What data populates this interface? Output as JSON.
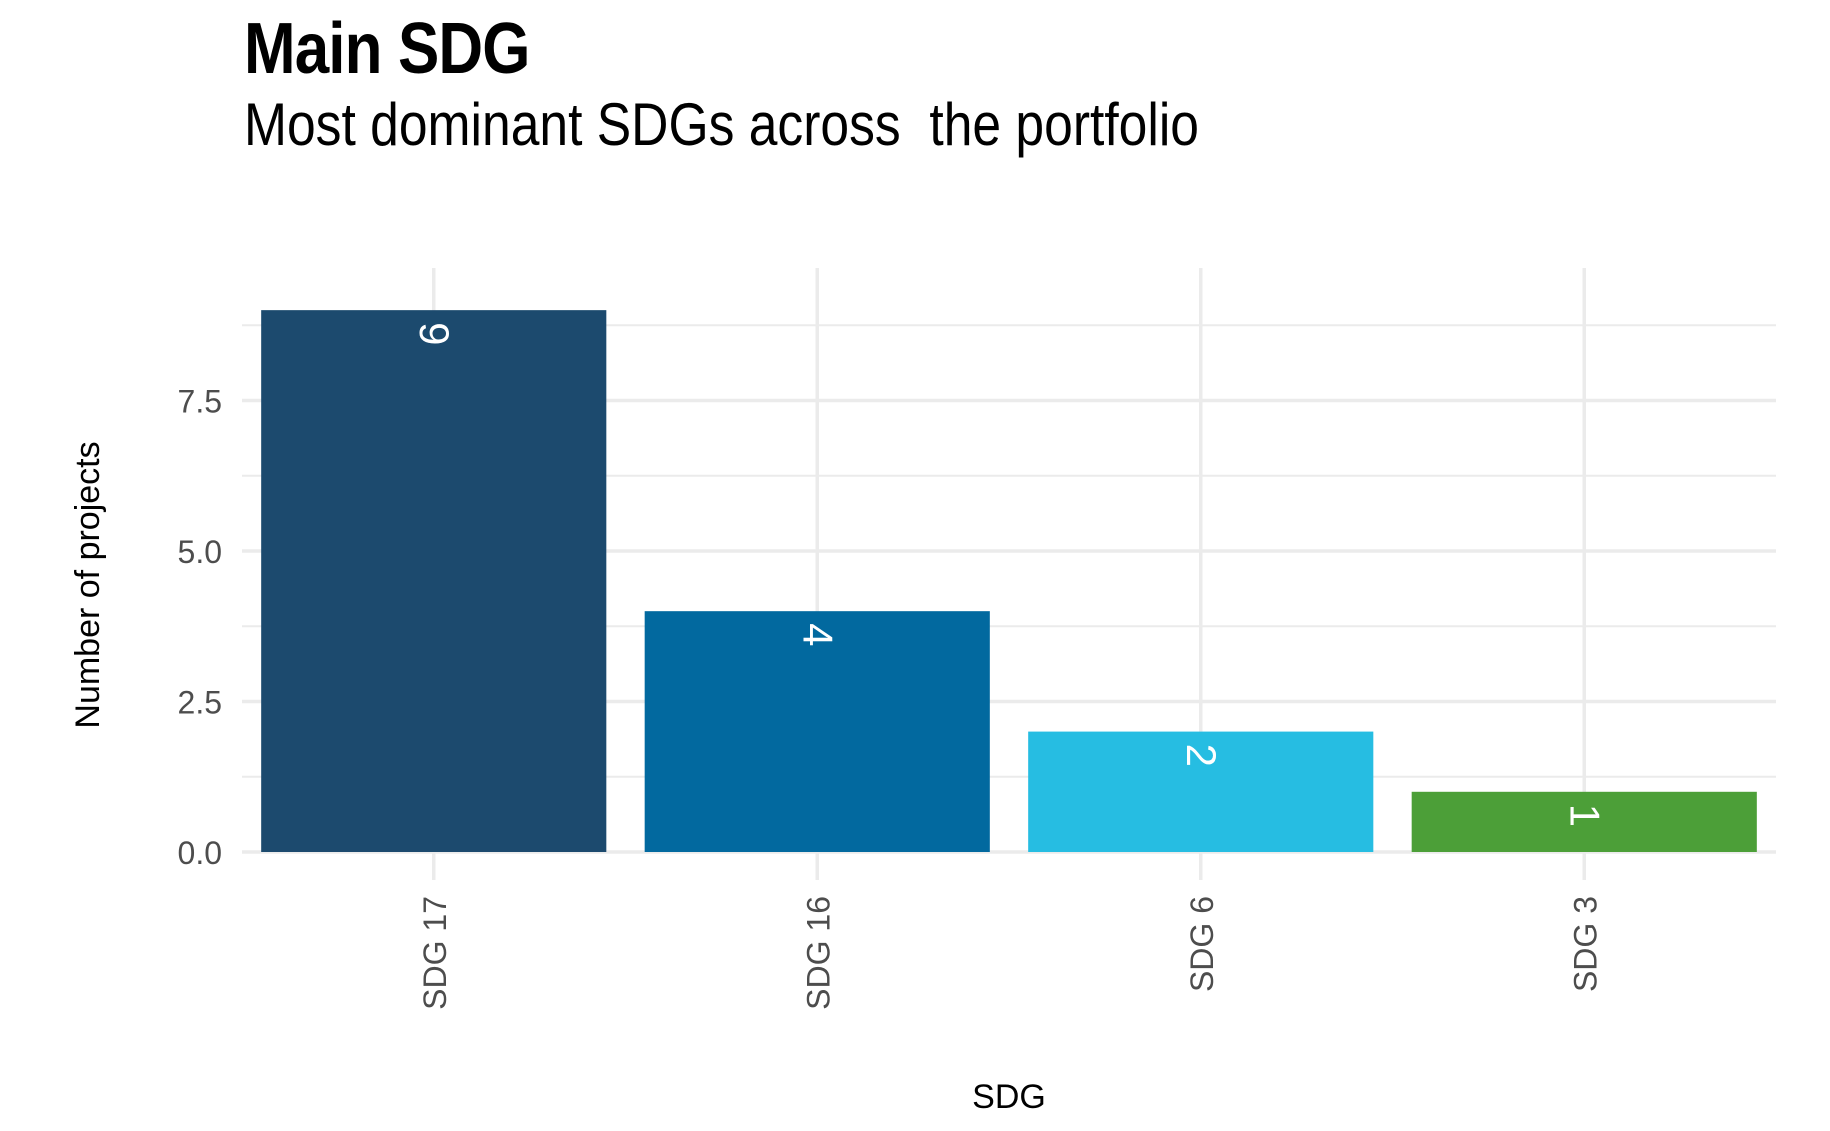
{
  "chart_data": {
    "type": "bar",
    "title": "Main SDG",
    "subtitle": "Most dominant SDGs across  the portfolio",
    "xlabel": "SDG",
    "ylabel": "Number of projects",
    "categories": [
      "SDG 17",
      "SDG 16",
      "SDG 6",
      "SDG 3"
    ],
    "values": [
      9,
      4,
      2,
      1
    ],
    "value_labels": [
      "9",
      "4",
      "2",
      "1"
    ],
    "colors": [
      "#1c4a6e",
      "#02699f",
      "#26bde2",
      "#4c9f38"
    ],
    "ylim": [
      0,
      9
    ],
    "yticks": [
      0,
      2.5,
      5,
      7.5
    ],
    "ytick_labels": [
      "0.0",
      "2.5",
      "5.0",
      "7.5"
    ],
    "grid": true,
    "legend": "none",
    "label_color": "#ffffff",
    "grid_color": "#ebebeb"
  }
}
